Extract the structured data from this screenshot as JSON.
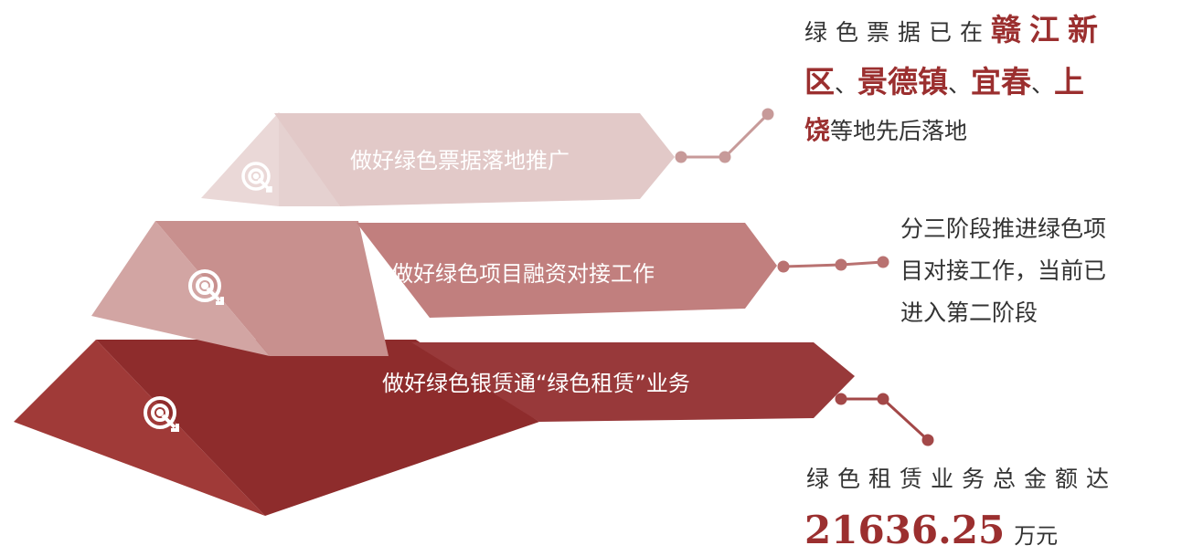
{
  "colors": {
    "tier_top": "#e3cccb",
    "tier_middle": "#c1817f",
    "tier_bottom": "#8e2c2c",
    "connector": "#b05a5a",
    "highlight": "#9b2f2f"
  },
  "tiers": [
    {
      "label": "做好绿色票据落地推广",
      "icon": "target-icon"
    },
    {
      "label": "做好绿色项目融资对接工作",
      "icon": "target-icon"
    },
    {
      "label": "做好绿色银赁通“绿色租赁”业务",
      "icon": "target-icon"
    }
  ],
  "notes": {
    "top": {
      "line1_prefix": "绿色票据已在",
      "line1_hl": "赣江新",
      "line2_hl1": "区",
      "sep1": "、",
      "line2_hl2": "景德镇",
      "sep2": "、",
      "line2_hl3": "宜春",
      "sep3": "、",
      "line2_hl4": "上",
      "line3_hl": "饶",
      "line3_rest": "等地先后落地"
    },
    "middle": {
      "line1": "分三阶段推进绿色项",
      "line2": "目对接工作，当前已",
      "line3": "进入第二阶段"
    },
    "bottom": {
      "line1": "绿色租赁业务总金额达",
      "amount": "21636.25",
      "unit": "万元"
    }
  }
}
